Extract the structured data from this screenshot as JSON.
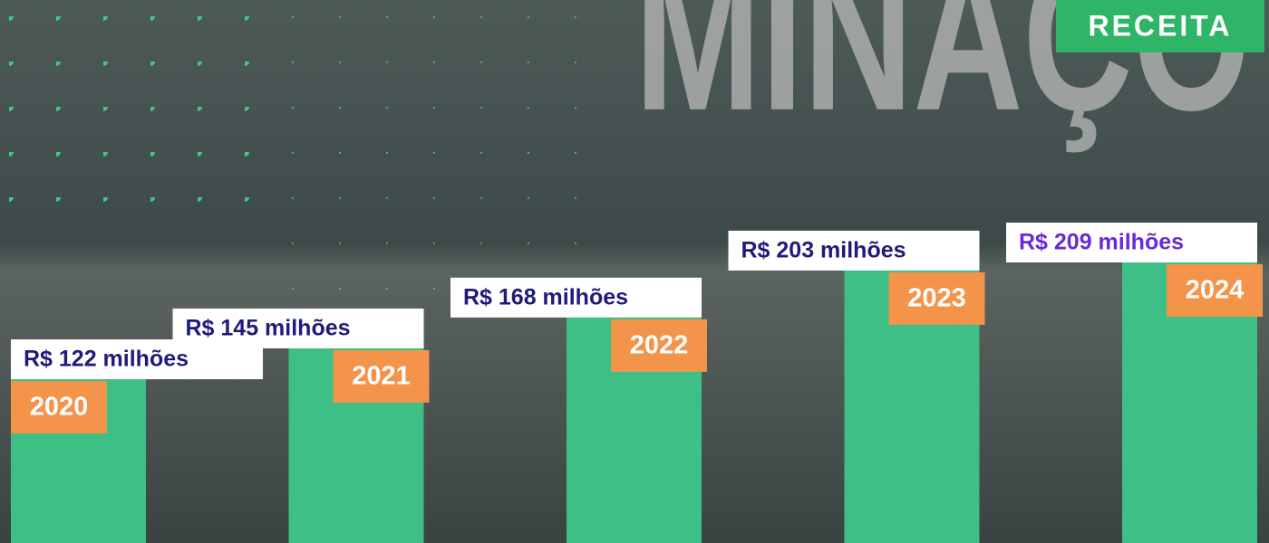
{
  "chart_data": {
    "type": "bar",
    "title": "RECEITA",
    "background_text": "MINAÇÕ",
    "categories": [
      "2020",
      "2021",
      "2022",
      "2023",
      "2024"
    ],
    "values": [
      122,
      145,
      168,
      203,
      209
    ],
    "value_labels": [
      "R$ 122 milhões",
      "R$ 145 milhões",
      "R$ 168 milhões",
      "R$ 203 milhões",
      "R$ 209 milhões"
    ],
    "color": "#3dbf85",
    "category_label_color": "#f4934a",
    "value_label_colors": [
      "#1f1b7c",
      "#1f1b7c",
      "#1f1b7c",
      "#1f1b7c",
      "#6a2bd6"
    ]
  }
}
